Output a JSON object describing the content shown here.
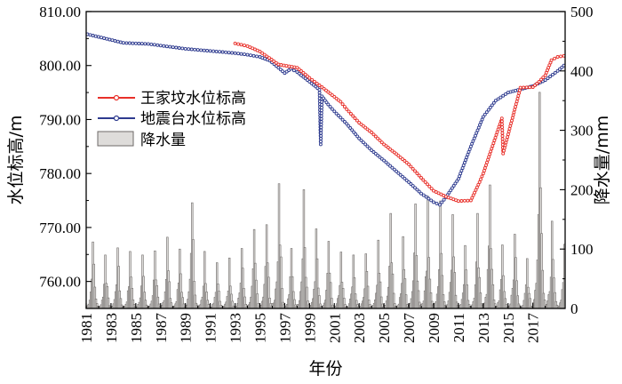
{
  "chart_data": {
    "type": "line",
    "xlabel": "年份",
    "ylabel_left": "水位标高/m",
    "ylabel_right": "降水量/mm",
    "x_range": [
      1981,
      2019.6
    ],
    "x_ticks": [
      "1981",
      "1983",
      "1985",
      "1987",
      "1989",
      "1991",
      "1993",
      "1995",
      "1997",
      "1999",
      "2001",
      "2003",
      "2005",
      "2007",
      "2009",
      "2011",
      "2013",
      "2015",
      "2017"
    ],
    "y_left_range": [
      755,
      810
    ],
    "y_left_ticks": [
      "760.00",
      "770.00",
      "780.00",
      "790.00",
      "800.00",
      "810.00"
    ],
    "y_right_range": [
      0,
      500
    ],
    "y_right_ticks": [
      "0",
      "100",
      "200",
      "300",
      "400",
      "500"
    ],
    "grid": false,
    "legend_position": "left-middle",
    "colors": {
      "wangjiafen": "#e8302a",
      "dizhentai": "#2e3b8f",
      "rain": "#6e6a68",
      "rain_fill": "#dedcda"
    },
    "legend": {
      "wangjiafen": "王家坟水位标高",
      "dizhentai": "地震台水位标高",
      "rain": "降水量"
    },
    "series": [
      {
        "name": "地震台水位标高",
        "axis": "left",
        "points": [
          [
            1981.1,
            805.8
          ],
          [
            1984.0,
            804.2
          ],
          [
            1985.0,
            804.1
          ],
          [
            1986.0,
            804.0
          ],
          [
            1987.0,
            803.7
          ],
          [
            1988.0,
            803.4
          ],
          [
            1989.0,
            803.1
          ],
          [
            1990.0,
            802.9
          ],
          [
            1991.0,
            802.7
          ],
          [
            1992.0,
            802.5
          ],
          [
            1993.0,
            802.3
          ],
          [
            1994.0,
            802.0
          ],
          [
            1995.0,
            801.6
          ],
          [
            1995.8,
            800.9
          ],
          [
            1996.5,
            799.6
          ],
          [
            1997.0,
            798.6
          ],
          [
            1997.5,
            799.4
          ],
          [
            1998.0,
            798.8
          ],
          [
            1998.5,
            797.9
          ],
          [
            1999.0,
            797.0
          ],
          [
            1999.5,
            796.1
          ],
          [
            1999.8,
            795.5
          ],
          [
            1999.9,
            785.4
          ],
          [
            2000.0,
            794.3
          ],
          [
            2000.5,
            792.8
          ],
          [
            2001.0,
            791.5
          ],
          [
            2002.0,
            789.2
          ],
          [
            2003.0,
            786.5
          ],
          [
            2004.0,
            784.3
          ],
          [
            2005.0,
            782.4
          ],
          [
            2006.0,
            780.4
          ],
          [
            2007.0,
            778.4
          ],
          [
            2008.0,
            776.3
          ],
          [
            2009.0,
            774.7
          ],
          [
            2009.5,
            774.2
          ],
          [
            2010.0,
            775.6
          ],
          [
            2011.0,
            779.0
          ],
          [
            2012.0,
            785.0
          ],
          [
            2013.0,
            790.5
          ],
          [
            2014.0,
            793.5
          ],
          [
            2015.0,
            795.0
          ],
          [
            2016.0,
            795.6
          ],
          [
            2017.0,
            796.2
          ],
          [
            2018.0,
            797.3
          ],
          [
            2019.0,
            799.0
          ],
          [
            2019.5,
            800.0
          ]
        ]
      },
      {
        "name": "王家坟水位标高",
        "axis": "left",
        "points": [
          [
            1993.0,
            804.1
          ],
          [
            1994.0,
            803.6
          ],
          [
            1995.0,
            802.6
          ],
          [
            1996.5,
            800.2
          ],
          [
            1998.0,
            799.6
          ],
          [
            1999.0,
            797.7
          ],
          [
            2000.0,
            796.0
          ],
          [
            2001.0,
            794.2
          ],
          [
            2001.5,
            793.3
          ],
          [
            2002.0,
            791.9
          ],
          [
            2003.0,
            789.4
          ],
          [
            2004.0,
            787.6
          ],
          [
            2005.0,
            785.4
          ],
          [
            2006.0,
            783.6
          ],
          [
            2007.0,
            781.7
          ],
          [
            2008.0,
            779.2
          ],
          [
            2009.0,
            776.8
          ],
          [
            2010.0,
            775.7
          ],
          [
            2011.0,
            774.9
          ],
          [
            2012.0,
            775.0
          ],
          [
            2012.7,
            778.4
          ],
          [
            2013.0,
            780.0
          ],
          [
            2014.5,
            790.2
          ],
          [
            2014.6,
            783.7
          ],
          [
            2016.0,
            795.9
          ],
          [
            2017.0,
            796.0
          ],
          [
            2017.5,
            797.0
          ],
          [
            2018.0,
            798.2
          ],
          [
            2018.5,
            801.0
          ],
          [
            2019.0,
            801.6
          ],
          [
            2019.5,
            801.8
          ]
        ]
      },
      {
        "name": "降水量",
        "axis": "right",
        "kind": "monthly-bars",
        "peaks": [
          [
            1981.5,
            112
          ],
          [
            1982.5,
            90
          ],
          [
            1983.5,
            102
          ],
          [
            1984.5,
            96
          ],
          [
            1985.5,
            90
          ],
          [
            1986.5,
            97
          ],
          [
            1987.5,
            120
          ],
          [
            1988.5,
            100
          ],
          [
            1989.5,
            178
          ],
          [
            1990.6,
            96
          ],
          [
            1991.6,
            77
          ],
          [
            1992.5,
            85
          ],
          [
            1993.5,
            101
          ],
          [
            1994.5,
            133
          ],
          [
            1995.5,
            141
          ],
          [
            1996.6,
            210
          ],
          [
            1997.6,
            101
          ],
          [
            1998.6,
            200
          ],
          [
            1999.6,
            134
          ],
          [
            2000.6,
            113
          ],
          [
            2001.6,
            95
          ],
          [
            2002.6,
            90
          ],
          [
            2003.6,
            92
          ],
          [
            2004.6,
            115
          ],
          [
            2005.6,
            160
          ],
          [
            2006.6,
            121
          ],
          [
            2007.6,
            176
          ],
          [
            2008.6,
            189
          ],
          [
            2009.6,
            181
          ],
          [
            2010.6,
            158
          ],
          [
            2011.6,
            106
          ],
          [
            2012.6,
            160
          ],
          [
            2013.6,
            208
          ],
          [
            2014.6,
            107
          ],
          [
            2015.6,
            125
          ],
          [
            2016.6,
            84
          ],
          [
            2017.6,
            364
          ],
          [
            2018.6,
            147
          ],
          [
            2019.3,
            108
          ]
        ]
      }
    ]
  }
}
